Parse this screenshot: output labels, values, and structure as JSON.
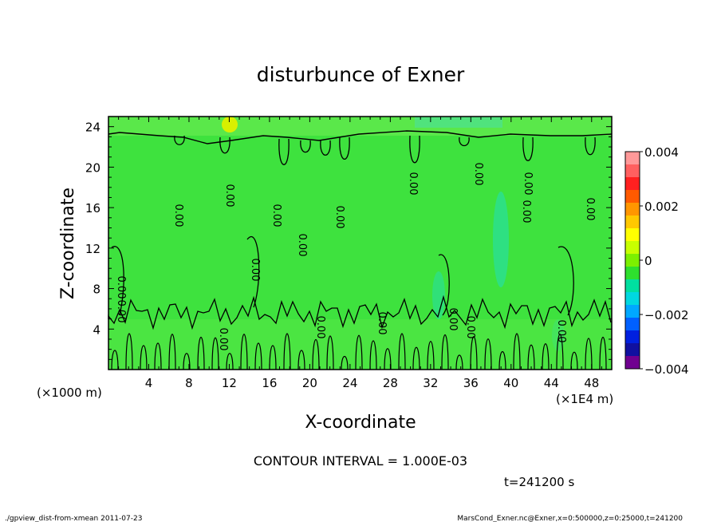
{
  "chart_data": {
    "type": "heatmap",
    "title": "disturbunce of Exner",
    "xlabel": "X-coordinate",
    "ylabel": "Z-coordinate",
    "x_unit_label": "(×1000 m)",
    "x_scale_label": "(×1E4 m)",
    "xlim": [
      0,
      50
    ],
    "ylim": [
      0,
      25
    ],
    "x_ticks": [
      "4",
      "8",
      "12",
      "16",
      "20",
      "24",
      "28",
      "32",
      "36",
      "40",
      "44",
      "48"
    ],
    "y_ticks": [
      "4",
      "8",
      "12",
      "16",
      "20",
      "24"
    ],
    "colorbar": {
      "range": [
        -0.004,
        0.004
      ],
      "labels": [
        "0.004",
        "0.002",
        "0",
        "−0.002",
        "−0.004"
      ],
      "colors": [
        "#ff9999",
        "#ff6060",
        "#ff2020",
        "#ff5a00",
        "#ff9600",
        "#ffc800",
        "#ffff00",
        "#c8ff00",
        "#7cf000",
        "#2ee02e",
        "#00e0a0",
        "#00d8e0",
        "#00a8ff",
        "#0060ff",
        "#0020e0",
        "#1010a0",
        "#700090"
      ]
    },
    "contour_interval": "CONTOUR INTERVAL = 1.000E-03",
    "contour_labels": [
      "0.00",
      "0.00",
      "0.00",
      "0.00",
      "0.00",
      "0.00",
      "0.00",
      "0.00",
      "0.00",
      "0.00",
      "0.00",
      "0.00",
      "0.00",
      "0.00",
      "0.00",
      "0.00",
      "0.00",
      "0.00",
      "0.00"
    ],
    "time_label": "t=241200 s",
    "footer_left": "./gpview_dist-from-xmean 2011-07-23",
    "footer_right": "MarsCond_Exner.nc@Exner,x=0:500000,z=0:25000,t=241200"
  }
}
